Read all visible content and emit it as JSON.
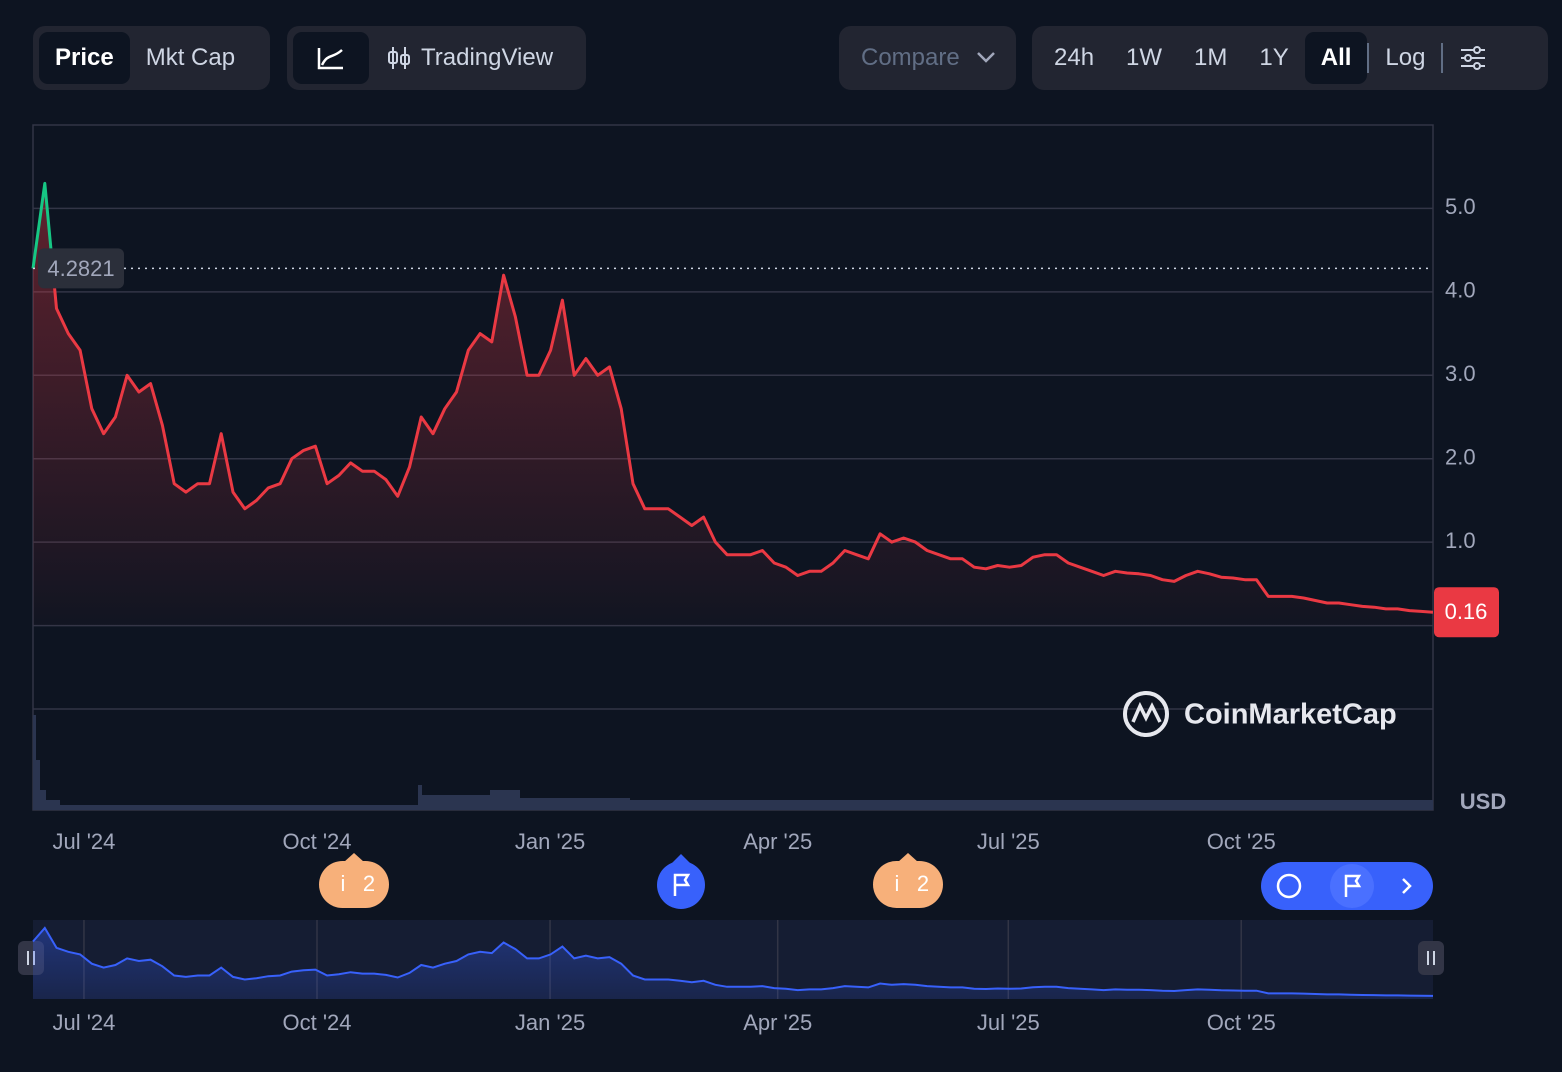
{
  "toolbar": {
    "view_tabs": [
      "Price",
      "Mkt Cap"
    ],
    "tools": [
      "TradingView"
    ],
    "compare": "Compare",
    "ranges": [
      "24h",
      "1W",
      "1M",
      "1Y",
      "All"
    ],
    "log": "Log"
  },
  "watermark": "CoinMarketCap",
  "events": [
    {
      "icon": "i",
      "count": "2"
    },
    {
      "icon": "i",
      "count": "2"
    }
  ],
  "chart_data": {
    "type": "line",
    "currency": "USD",
    "values": [
      4.28,
      5.3,
      3.8,
      3.5,
      3.3,
      2.6,
      2.3,
      2.5,
      3.0,
      2.8,
      2.9,
      2.4,
      1.7,
      1.6,
      1.7,
      1.7,
      2.3,
      1.6,
      1.4,
      1.5,
      1.65,
      1.7,
      2.0,
      2.1,
      2.15,
      1.7,
      1.8,
      1.95,
      1.85,
      1.85,
      1.75,
      1.55,
      1.9,
      2.5,
      2.3,
      2.6,
      2.8,
      3.3,
      3.5,
      3.4,
      4.2,
      3.7,
      3.0,
      3.0,
      3.3,
      3.9,
      3.0,
      3.2,
      3.0,
      3.1,
      2.6,
      1.7,
      1.4,
      1.4,
      1.4,
      1.3,
      1.2,
      1.3,
      1.0,
      0.85,
      0.85,
      0.85,
      0.9,
      0.75,
      0.7,
      0.6,
      0.65,
      0.65,
      0.75,
      0.9,
      0.85,
      0.8,
      1.1,
      1.0,
      1.05,
      1.0,
      0.9,
      0.85,
      0.8,
      0.8,
      0.7,
      0.68,
      0.72,
      0.7,
      0.72,
      0.82,
      0.85,
      0.85,
      0.75,
      0.7,
      0.65,
      0.6,
      0.65,
      0.63,
      0.62,
      0.6,
      0.55,
      0.53,
      0.6,
      0.65,
      0.62,
      0.58,
      0.57,
      0.55,
      0.55,
      0.35,
      0.35,
      0.35,
      0.33,
      0.3,
      0.27,
      0.27,
      0.25,
      0.23,
      0.22,
      0.2,
      0.2,
      0.18,
      0.17,
      0.16
    ],
    "reference_line": 4.2821,
    "up_color": "#16c784",
    "down_color": "#ea3943",
    "nav_color": "#3861fb",
    "ylim": [
      -1.0,
      6.0
    ],
    "yticks": [
      {
        "value": 1,
        "label": "1.0"
      },
      {
        "value": 2,
        "label": "2.0"
      },
      {
        "value": 3,
        "label": "3.0"
      },
      {
        "value": 4,
        "label": "4.0"
      },
      {
        "value": 5,
        "label": "5.0"
      }
    ],
    "xticks": [
      {
        "value": 4.33,
        "label": "Jul '24"
      },
      {
        "value": 24.14,
        "label": "Oct '24"
      },
      {
        "value": 43.95,
        "label": "Jan '25"
      },
      {
        "value": 63.3,
        "label": "Apr '25"
      },
      {
        "value": 82.9,
        "label": "Jul '25"
      },
      {
        "value": 102.7,
        "label": "Oct '25"
      }
    ],
    "grid": true
  }
}
